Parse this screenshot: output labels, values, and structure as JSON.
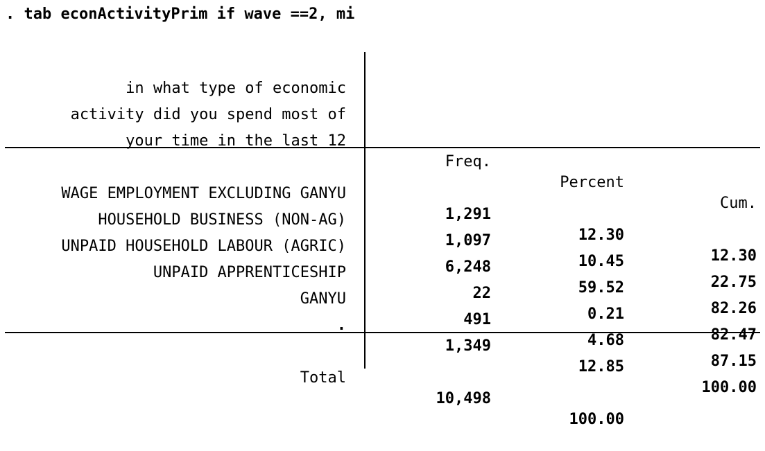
{
  "command": ". tab econActivityPrim if wave ==2, mi",
  "table": {
    "header": {
      "variable_label_lines": [
        "in what type of economic",
        "activity did you spend most of",
        "your time in the last 12"
      ],
      "freq": "Freq.",
      "percent": "Percent",
      "cum": "Cum."
    },
    "rows": [
      {
        "label": "WAGE EMPLOYMENT EXCLUDING GANYU",
        "freq": "1,291",
        "percent": "12.30",
        "cum": "12.30"
      },
      {
        "label": "HOUSEHOLD BUSINESS (NON-AG)",
        "freq": "1,097",
        "percent": "10.45",
        "cum": "22.75"
      },
      {
        "label": "UNPAID HOUSEHOLD LABOUR (AGRIC)",
        "freq": "6,248",
        "percent": "59.52",
        "cum": "82.26"
      },
      {
        "label": "UNPAID APPRENTICESHIP",
        "freq": "22",
        "percent": "0.21",
        "cum": "82.47"
      },
      {
        "label": "GANYU",
        "freq": "491",
        "percent": "4.68",
        "cum": "87.15"
      },
      {
        "label": ".",
        "freq": "1,349",
        "percent": "12.85",
        "cum": "100.00"
      }
    ],
    "total": {
      "label": "Total",
      "freq": "10,498",
      "percent": "100.00"
    }
  }
}
